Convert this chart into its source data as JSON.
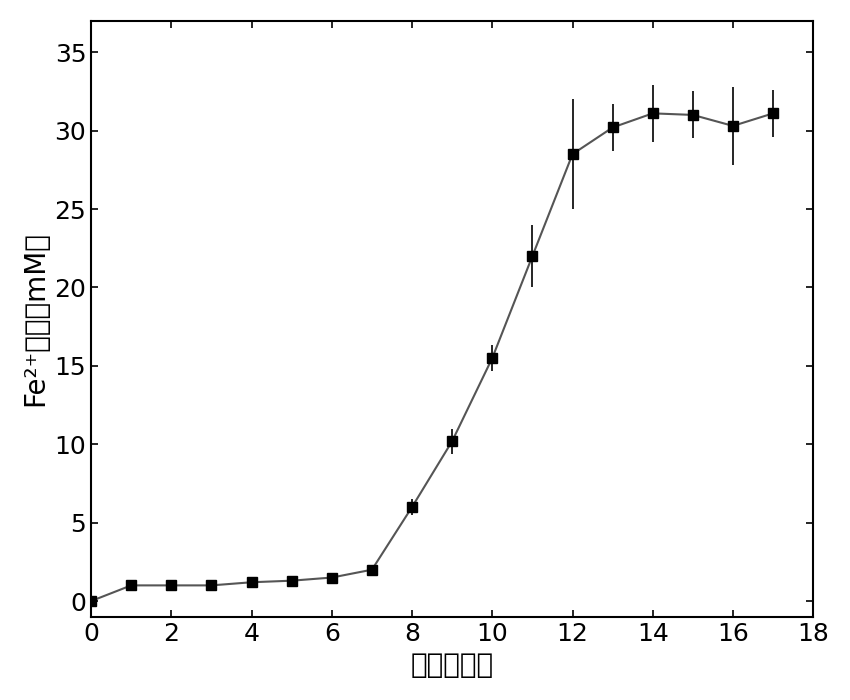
{
  "x": [
    0,
    1,
    2,
    3,
    4,
    5,
    6,
    7,
    8,
    9,
    10,
    11,
    12,
    13,
    14,
    15,
    16,
    17
  ],
  "y": [
    0.0,
    1.0,
    1.0,
    1.0,
    1.2,
    1.3,
    1.5,
    2.0,
    6.0,
    10.2,
    15.5,
    22.0,
    28.5,
    30.2,
    31.1,
    31.0,
    30.3,
    31.1
  ],
  "yerr": [
    0.0,
    0.1,
    0.1,
    0.1,
    0.1,
    0.1,
    0.1,
    0.2,
    0.5,
    0.8,
    0.8,
    2.0,
    3.5,
    1.5,
    1.8,
    1.5,
    2.5,
    1.5
  ],
  "xlabel": "时间（天）",
  "ylabel_part1": "Fe",
  "ylabel_chinese": "含量（mM）",
  "xlim": [
    0,
    18
  ],
  "ylim": [
    -1,
    37
  ],
  "xticks": [
    0,
    2,
    4,
    6,
    8,
    10,
    12,
    14,
    16,
    18
  ],
  "yticks": [
    0,
    5,
    10,
    15,
    20,
    25,
    30,
    35
  ],
  "line_color": "#555555",
  "marker_color": "#000000",
  "background_color": "#ffffff",
  "label_fontsize": 20,
  "tick_fontsize": 18
}
